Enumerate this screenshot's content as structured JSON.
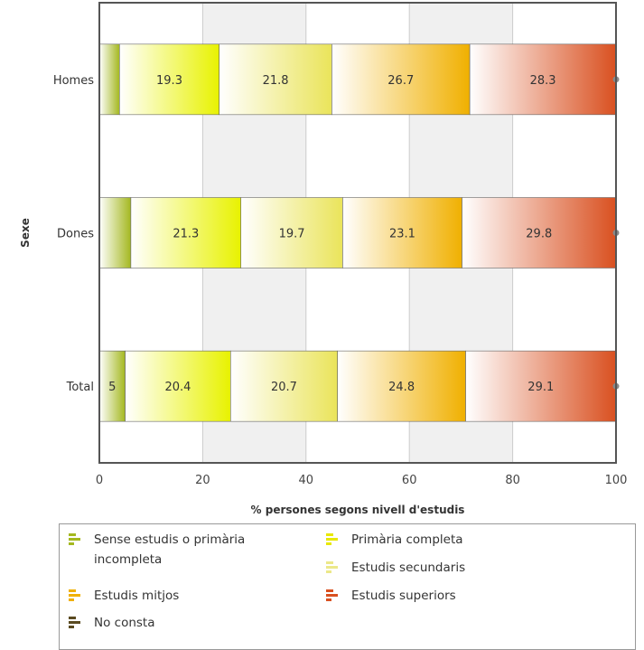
{
  "chart_data": {
    "type": "bar",
    "orientation": "horizontal",
    "stacked": true,
    "categories": [
      "Homes",
      "Dones",
      "Total"
    ],
    "series": [
      {
        "name": "Sense estudis o primària incompleta",
        "values": [
          3.9,
          6.1,
          5
        ],
        "color": "#a4b820",
        "labels": [
          "",
          "",
          "5"
        ]
      },
      {
        "name": "Primària completa",
        "values": [
          19.3,
          21.3,
          20.4
        ],
        "color": "#e8f200",
        "labels": [
          "19.3",
          "21.3",
          "20.4"
        ]
      },
      {
        "name": "Estudis secundaris",
        "values": [
          21.8,
          19.7,
          20.7
        ],
        "color": "#eae45a",
        "labels": [
          "21.8",
          "19.7",
          "20.7"
        ]
      },
      {
        "name": "Estudis mitjos",
        "values": [
          26.7,
          23.1,
          24.8
        ],
        "color": "#f0b000",
        "labels": [
          "26.7",
          "23.1",
          "24.8"
        ]
      },
      {
        "name": "Estudis superiors",
        "values": [
          28.3,
          29.8,
          29.1
        ],
        "color": "#d95020",
        "labels": [
          "28.3",
          "29.8",
          "29.1"
        ]
      },
      {
        "name": "No consta",
        "values": [
          0,
          0,
          0
        ],
        "color": "#5a4a20",
        "labels": [
          "",
          "",
          ""
        ]
      }
    ],
    "xlabel": "% persones segons nivell d'estudis",
    "ylabel": "Sexe",
    "xlim": [
      0,
      100
    ],
    "xticks": [
      "0",
      "20",
      "40",
      "60",
      "80",
      "100"
    ],
    "grid": "alternating-bands",
    "legend_position": "bottom"
  },
  "legend": {
    "items": [
      {
        "label": "Sense estudis o primària incompleta",
        "color": "#a4b820",
        "icon": "bar-legend-icon"
      },
      {
        "label": "Primària completa",
        "color": "#e8e800",
        "icon": "bar-legend-icon"
      },
      {
        "label": "Estudis secundaris",
        "color": "#ece88a",
        "icon": "bar-legend-icon"
      },
      {
        "label": "Estudis mitjos",
        "color": "#f0b000",
        "icon": "bar-legend-icon"
      },
      {
        "label": "Estudis superiors",
        "color": "#d95020",
        "icon": "bar-legend-icon"
      },
      {
        "label": "No consta",
        "color": "#5a4a20",
        "icon": "bar-legend-icon"
      }
    ]
  }
}
